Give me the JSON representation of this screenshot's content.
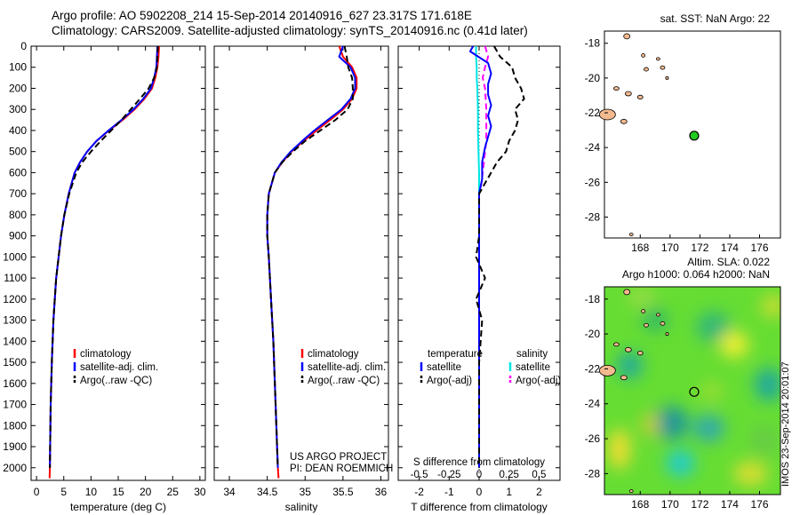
{
  "header": {
    "line1": "Argo profile: AO 5902208_214 15-Sep-2014 20140916_627 23.317S 171.618E",
    "line2": "Climatology: CARS2009. Satellite-adjusted climatology: synTS_20140916.nc (0.41d later)"
  },
  "stamp": "IMOS 23-Sep-2014 20:01:07",
  "colors": {
    "climatology": "#ff0000",
    "satellite": "#0000ff",
    "argo": "#000000",
    "s_satellite": "#00e5e5",
    "s_argo": "#ff00ff",
    "land": "#f4b98f",
    "float_marker": "#22cc22"
  },
  "depth_axis": {
    "ticks": [
      0,
      100,
      200,
      300,
      400,
      500,
      600,
      700,
      800,
      900,
      1000,
      1100,
      1200,
      1300,
      1400,
      1500,
      1600,
      1700,
      1800,
      1900,
      2000
    ],
    "range": [
      0,
      2060
    ],
    "reversed": true
  },
  "chart_data": [
    {
      "type": "line",
      "panel": "temperature",
      "xlabel": "temperature (deg C)",
      "xlim": [
        -1,
        31
      ],
      "xticks": [
        0,
        5,
        10,
        15,
        20,
        25,
        30
      ],
      "ylim": [
        0,
        2060
      ],
      "legend": [
        "climatology",
        "satellite-adj. clim.",
        "Argo(..raw -QC)"
      ],
      "series": [
        {
          "name": "climatology",
          "x": [
            22.5,
            22.4,
            22.2,
            21.8,
            21.2,
            19.8,
            18.0,
            15.8,
            13.3,
            11.0,
            9.3,
            8.0,
            7.0,
            5.9,
            5.1,
            4.5,
            3.6,
            3.1,
            2.8,
            2.6,
            2.5,
            2.45,
            2.4
          ],
          "y": [
            0,
            50,
            100,
            150,
            200,
            250,
            300,
            350,
            400,
            450,
            500,
            550,
            600,
            700,
            800,
            900,
            1100,
            1300,
            1500,
            1700,
            1900,
            2000,
            2050
          ]
        },
        {
          "name": "satellite-adj. clim.",
          "x": [
            22.2,
            22.1,
            22.0,
            21.6,
            21.0,
            19.6,
            17.8,
            15.6,
            13.2,
            11.0,
            9.3,
            8.0,
            7.0,
            5.9,
            5.1,
            4.5,
            3.6,
            3.1,
            2.8,
            2.6,
            2.5,
            2.45
          ],
          "y": [
            0,
            50,
            100,
            150,
            200,
            250,
            300,
            350,
            400,
            450,
            500,
            550,
            600,
            700,
            800,
            900,
            1100,
            1300,
            1500,
            1700,
            1900,
            2000
          ]
        },
        {
          "name": "Argo(..raw -QC)",
          "x": [
            22.3,
            22.2,
            22.1,
            21.6,
            20.6,
            19.0,
            17.3,
            15.6,
            13.7,
            11.8,
            10.0,
            8.4,
            7.3,
            6.0,
            5.1,
            4.5,
            3.6,
            3.1,
            2.8,
            2.6,
            2.5,
            2.45
          ],
          "y": [
            0,
            50,
            100,
            150,
            200,
            250,
            300,
            350,
            400,
            450,
            500,
            550,
            600,
            700,
            800,
            900,
            1100,
            1300,
            1500,
            1700,
            1900,
            2000
          ]
        }
      ]
    },
    {
      "type": "line",
      "panel": "salinity",
      "xlabel": "salinity",
      "xlim": [
        33.8,
        36.1
      ],
      "xticks": [
        34,
        34.5,
        35,
        35.5,
        36
      ],
      "ylim": [
        0,
        2060
      ],
      "legend": [
        "climatology",
        "satellite-adj. clim.",
        "Argo(..raw -QC)"
      ],
      "annotation": [
        "US ARGO PROJECT",
        "PI: DEAN ROEMMICH"
      ],
      "series": [
        {
          "name": "climatology",
          "x": [
            35.45,
            35.5,
            35.62,
            35.68,
            35.68,
            35.62,
            35.5,
            35.33,
            35.15,
            34.98,
            34.82,
            34.7,
            34.6,
            34.52,
            34.5,
            34.5,
            34.52,
            34.55,
            34.58,
            34.6,
            34.62,
            34.63,
            34.64,
            34.65
          ],
          "y": [
            0,
            50,
            100,
            150,
            200,
            250,
            300,
            350,
            400,
            450,
            500,
            550,
            600,
            700,
            800,
            900,
            1000,
            1200,
            1400,
            1600,
            1800,
            1900,
            2000,
            2050
          ]
        },
        {
          "name": "satellite-adj. clim.",
          "x": [
            35.5,
            35.45,
            35.6,
            35.66,
            35.66,
            35.6,
            35.48,
            35.3,
            35.12,
            34.96,
            34.81,
            34.69,
            34.6,
            34.52,
            34.5,
            34.5,
            34.52,
            34.55,
            34.58,
            34.6,
            34.62,
            34.63,
            34.64
          ],
          "y": [
            0,
            50,
            100,
            150,
            200,
            250,
            300,
            350,
            400,
            450,
            500,
            550,
            600,
            700,
            800,
            900,
            1000,
            1200,
            1400,
            1600,
            1800,
            1900,
            2000
          ]
        },
        {
          "name": "Argo(..raw -QC)",
          "x": [
            35.52,
            35.55,
            35.57,
            35.62,
            35.63,
            35.63,
            35.56,
            35.4,
            35.2,
            35.0,
            34.84,
            34.7,
            34.6,
            34.52,
            34.5,
            34.5,
            34.52,
            34.55,
            34.58,
            34.6,
            34.62,
            34.63,
            34.64
          ],
          "y": [
            0,
            50,
            100,
            150,
            200,
            250,
            300,
            350,
            400,
            450,
            500,
            550,
            600,
            700,
            800,
            900,
            1000,
            1200,
            1400,
            1600,
            1800,
            1900,
            2000
          ]
        }
      ]
    },
    {
      "type": "line",
      "panel": "difference",
      "xlabel": "T difference from climatology",
      "xlabel_top": "S difference from climatology",
      "xlim": [
        -2.7,
        2.7
      ],
      "xticks": [
        -2,
        -1,
        0,
        1,
        2
      ],
      "s_xticks": [
        -0.5,
        -0.25,
        0,
        0.25,
        0.5
      ],
      "s_scale": 4,
      "ylim": [
        0,
        2060
      ],
      "legend": {
        "temperature": [
          "temperature",
          "satellite",
          "Argo(-adj)"
        ],
        "salinity": [
          "salinity",
          "satellite",
          "Argo(-adj)"
        ]
      },
      "series": [
        {
          "name": "T satellite",
          "x": [
            -0.2,
            -0.3,
            0.3,
            0.4,
            0.3,
            0.3,
            0.4,
            0.3,
            0.4,
            0.3,
            0.2,
            0.1,
            0.1,
            0.0,
            0.0,
            0.0,
            0.0,
            0.0,
            0.0,
            0.0
          ],
          "y": [
            0,
            25,
            80,
            130,
            180,
            230,
            280,
            330,
            380,
            430,
            480,
            550,
            630,
            700,
            800,
            1000,
            1200,
            1500,
            1800,
            2000
          ]
        },
        {
          "name": "T Argo(-adj)",
          "x": [
            0.5,
            0.7,
            1.1,
            1.2,
            1.4,
            1.5,
            1.2,
            1.3,
            1.2,
            1.0,
            0.9,
            0.6,
            0.4,
            0.2,
            0.0,
            0.0,
            -0.1,
            0.2,
            -0.1,
            0.1,
            0.0,
            0.0,
            0.0
          ],
          "y": [
            0,
            50,
            100,
            150,
            200,
            250,
            300,
            350,
            400,
            450,
            500,
            550,
            600,
            650,
            700,
            900,
            1000,
            1100,
            1200,
            1300,
            1500,
            1800,
            2000
          ]
        },
        {
          "name": "S satellite",
          "x": [
            -0.025,
            -0.025,
            -0.02,
            -0.02,
            -0.015,
            -0.01,
            -0.01,
            -0.005,
            0,
            0,
            0,
            0,
            0
          ],
          "y": [
            0,
            50,
            100,
            150,
            200,
            300,
            400,
            500,
            600,
            800,
            1200,
            1600,
            2000
          ]
        },
        {
          "name": "S Argo(-adj)",
          "x": [
            0.05,
            0.075,
            0.05,
            0.03,
            0.05,
            0.06,
            0.06,
            0.06,
            0.05,
            0.04,
            0.03,
            0.02,
            0.0
          ],
          "y": [
            0,
            50,
            100,
            150,
            200,
            300,
            400,
            450,
            500,
            550,
            600,
            650,
            700
          ]
        }
      ]
    },
    {
      "type": "scatter",
      "panel": "map-sst",
      "title": "sat. SST: NaN Argo: 22",
      "xlim": [
        165.6,
        177.4
      ],
      "ylim": [
        -29.2,
        -17.3
      ],
      "xticks": [
        168,
        170,
        172,
        174,
        176
      ],
      "yticks": [
        -18,
        -20,
        -22,
        -24,
        -26,
        -28
      ],
      "float_position": {
        "lon": 171.618,
        "lat": -23.317
      }
    },
    {
      "type": "heatmap",
      "panel": "map-sla",
      "title1": "Altim. SLA: 0.022",
      "title2": "Argo h1000: 0.064 h2000: NaN",
      "xlim": [
        165.6,
        177.4
      ],
      "ylim": [
        -29.2,
        -17.3
      ],
      "xticks": [
        168,
        170,
        172,
        174,
        176
      ],
      "yticks": [
        -18,
        -20,
        -22,
        -24,
        -26,
        -28
      ],
      "float_position": {
        "lon": 171.618,
        "lat": -23.317
      }
    }
  ]
}
